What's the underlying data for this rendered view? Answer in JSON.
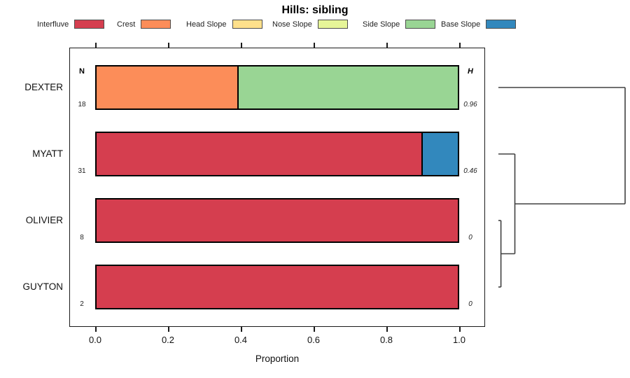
{
  "title": "Hills: sibling",
  "columns": {
    "n_header": "N",
    "h_header": "H"
  },
  "x_axis": {
    "label": "Proportion"
  },
  "legend": {
    "items": [
      {
        "label": "Interfluve",
        "color": "#D53E4F"
      },
      {
        "label": "Crest",
        "color": "#FC8D59"
      },
      {
        "label": "Head Slope",
        "color": "#FEE08B"
      },
      {
        "label": "Nose Slope",
        "color": "#E6F598"
      },
      {
        "label": "Side Slope",
        "color": "#99D594"
      },
      {
        "label": "Base Slope",
        "color": "#3288BD"
      }
    ]
  },
  "chart_data": {
    "type": "bar",
    "orientation": "horizontal",
    "stacked": true,
    "title": "Hills: sibling",
    "xlabel": "Proportion",
    "xlim": [
      0,
      1
    ],
    "x_ticks": [
      {
        "value": 0.0,
        "label": "0.0"
      },
      {
        "value": 0.2,
        "label": "0.2"
      },
      {
        "value": 0.4,
        "label": "0.4"
      },
      {
        "value": 0.6,
        "label": "0.6"
      },
      {
        "value": 0.8,
        "label": "0.8"
      },
      {
        "value": 1.0,
        "label": "1.0"
      }
    ],
    "categories": [
      "DEXTER",
      "MYATT",
      "OLIVIER",
      "GUYTON"
    ],
    "palette": {
      "Interfluve": "#D53E4F",
      "Crest": "#FC8D59",
      "Head Slope": "#FEE08B",
      "Nose Slope": "#E6F598",
      "Side Slope": "#99D594",
      "Base Slope": "#3288BD"
    },
    "rows": [
      {
        "category": "DEXTER",
        "n": "18",
        "h": "0.96",
        "segments": [
          {
            "name": "Crest",
            "value": 0.39
          },
          {
            "name": "Side Slope",
            "value": 0.61
          }
        ]
      },
      {
        "category": "MYATT",
        "n": "31",
        "h": "0.46",
        "segments": [
          {
            "name": "Interfluve",
            "value": 0.9
          },
          {
            "name": "Base Slope",
            "value": 0.1
          }
        ]
      },
      {
        "category": "OLIVIER",
        "n": "8",
        "h": "0",
        "segments": [
          {
            "name": "Interfluve",
            "value": 1.0
          }
        ]
      },
      {
        "category": "GUYTON",
        "n": "2",
        "h": "0",
        "segments": [
          {
            "name": "Interfluve",
            "value": 1.0
          }
        ]
      }
    ],
    "dendrogram": {
      "tree": {
        "height": 1.0,
        "children": [
          {
            "height": 0.13,
            "children": [
              {
                "height": 0.02,
                "children": [
                  {
                    "leaf": "OLIVIER"
                  },
                  {
                    "leaf": "GUYTON"
                  }
                ]
              },
              {
                "leaf": "MYATT"
              }
            ]
          },
          {
            "leaf": "DEXTER"
          }
        ]
      }
    }
  }
}
